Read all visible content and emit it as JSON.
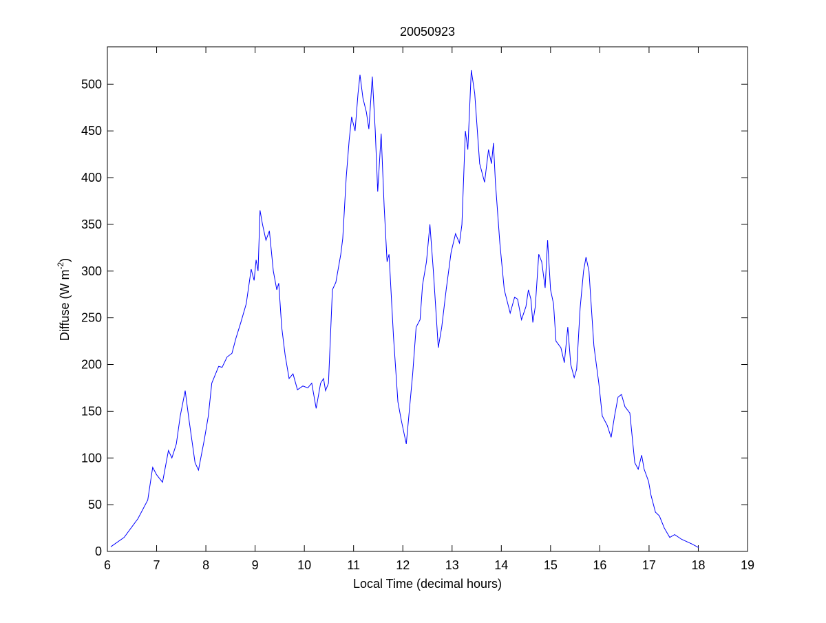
{
  "chart_data": {
    "type": "line",
    "title": "20050923",
    "x_label": "Local Time (decimal hours)",
    "y_label_parts": [
      "Diffuse (W m",
      "-2",
      ")"
    ],
    "xlim": [
      6,
      19
    ],
    "xticks": [
      6,
      7,
      8,
      9,
      10,
      11,
      12,
      13,
      14,
      15,
      16,
      17,
      18,
      19
    ],
    "ylim": [
      0,
      540
    ],
    "yticks": [
      0,
      50,
      100,
      150,
      200,
      250,
      300,
      350,
      400,
      450,
      500
    ],
    "grid": false,
    "series": [
      {
        "color": "#0000ff",
        "x": [
          6.07,
          6.34,
          6.62,
          6.82,
          6.92,
          7.0,
          7.12,
          7.24,
          7.31,
          7.4,
          7.48,
          7.58,
          7.66,
          7.78,
          7.85,
          7.97,
          8.05,
          8.12,
          8.26,
          8.33,
          8.43,
          8.53,
          8.61,
          8.71,
          8.82,
          8.92,
          8.98,
          9.02,
          9.06,
          9.1,
          9.15,
          9.22,
          9.29,
          9.37,
          9.44,
          9.48,
          9.54,
          9.61,
          9.69,
          9.77,
          9.86,
          9.97,
          10.07,
          10.15,
          10.24,
          10.33,
          10.39,
          10.43,
          10.49,
          10.57,
          10.64,
          10.74,
          10.78,
          10.85,
          10.91,
          10.96,
          11.03,
          11.09,
          11.13,
          11.19,
          11.26,
          11.31,
          11.38,
          11.44,
          11.49,
          11.56,
          11.62,
          11.68,
          11.72,
          11.81,
          11.9,
          11.97,
          12.07,
          12.2,
          12.27,
          12.35,
          12.4,
          12.48,
          12.55,
          12.62,
          12.72,
          12.79,
          12.88,
          12.98,
          13.07,
          13.15,
          13.2,
          13.27,
          13.32,
          13.39,
          13.46,
          13.56,
          13.66,
          13.74,
          13.8,
          13.84,
          13.88,
          13.97,
          14.06,
          14.18,
          14.27,
          14.33,
          14.41,
          14.5,
          14.55,
          14.6,
          14.64,
          14.69,
          14.76,
          14.82,
          14.89,
          14.94,
          15.0,
          15.06,
          15.11,
          15.21,
          15.28,
          15.35,
          15.41,
          15.48,
          15.53,
          15.6,
          15.67,
          15.72,
          15.78,
          15.88,
          15.98,
          16.05,
          16.15,
          16.23,
          16.3,
          16.37,
          16.44,
          16.51,
          16.61,
          16.71,
          16.78,
          16.85,
          16.9,
          16.99,
          17.04,
          17.13,
          17.21,
          17.31,
          17.42,
          17.52,
          17.66,
          17.87,
          18.01
        ],
        "values": [
          5,
          15,
          35,
          55,
          90,
          82,
          74,
          108,
          100,
          115,
          145,
          172,
          140,
          95,
          87,
          120,
          145,
          180,
          198,
          197,
          208,
          212,
          228,
          245,
          265,
          302,
          290,
          312,
          300,
          365,
          350,
          333,
          343,
          300,
          280,
          287,
          240,
          210,
          185,
          190,
          173,
          177,
          175,
          180,
          153,
          180,
          185,
          172,
          180,
          280,
          288,
          318,
          335,
          400,
          440,
          465,
          450,
          490,
          510,
          485,
          470,
          452,
          508,
          450,
          385,
          447,
          370,
          310,
          318,
          230,
          160,
          140,
          115,
          190,
          240,
          248,
          285,
          310,
          350,
          300,
          218,
          240,
          280,
          320,
          340,
          330,
          350,
          450,
          430,
          515,
          490,
          415,
          395,
          430,
          415,
          437,
          395,
          330,
          280,
          255,
          272,
          270,
          248,
          262,
          280,
          270,
          245,
          262,
          318,
          310,
          282,
          333,
          280,
          265,
          225,
          218,
          202,
          240,
          200,
          186,
          195,
          260,
          300,
          315,
          300,
          220,
          180,
          145,
          135,
          122,
          145,
          165,
          168,
          155,
          148,
          95,
          88,
          103,
          88,
          75,
          60,
          42,
          38,
          25,
          15,
          18,
          13,
          8,
          4
        ]
      }
    ]
  }
}
